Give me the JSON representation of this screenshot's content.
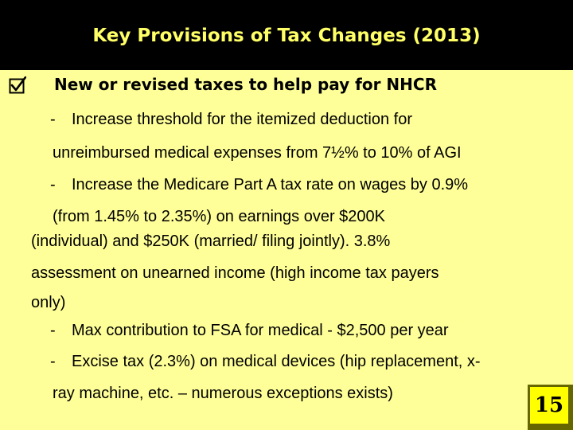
{
  "title": "Key Provisions of Tax Changes (2013)",
  "heading": "New or revised taxes to help pay for NHCR",
  "bullet_dash": "-",
  "lines": {
    "l1": "Increase threshold for the itemized deduction for",
    "l2": "unreimbursed medical expenses from 7½% to 10% of AGI",
    "l3": "Increase the Medicare Part A tax rate on wages by 0.9%",
    "l4": "(from 1.45% to 2.35%) on earnings over $200K",
    "l5": "(individual) and $250K (married/ filing jointly). 3.8%",
    "l6": "assessment on unearned income (high income tax payers",
    "l7": "only)",
    "l8": "Max contribution to FSA for medical - $2,500 per year",
    "l9": "Excise tax (2.3%) on medical devices (hip replacement, x-",
    "l10": "ray machine, etc. – numerous exceptions exists)"
  },
  "page_number": "15",
  "colors": {
    "background": "#ffff99",
    "title_bar": "#000000",
    "title_text": "#ffff66",
    "page_box": "#ffff00",
    "page_shadow": "#666600"
  }
}
